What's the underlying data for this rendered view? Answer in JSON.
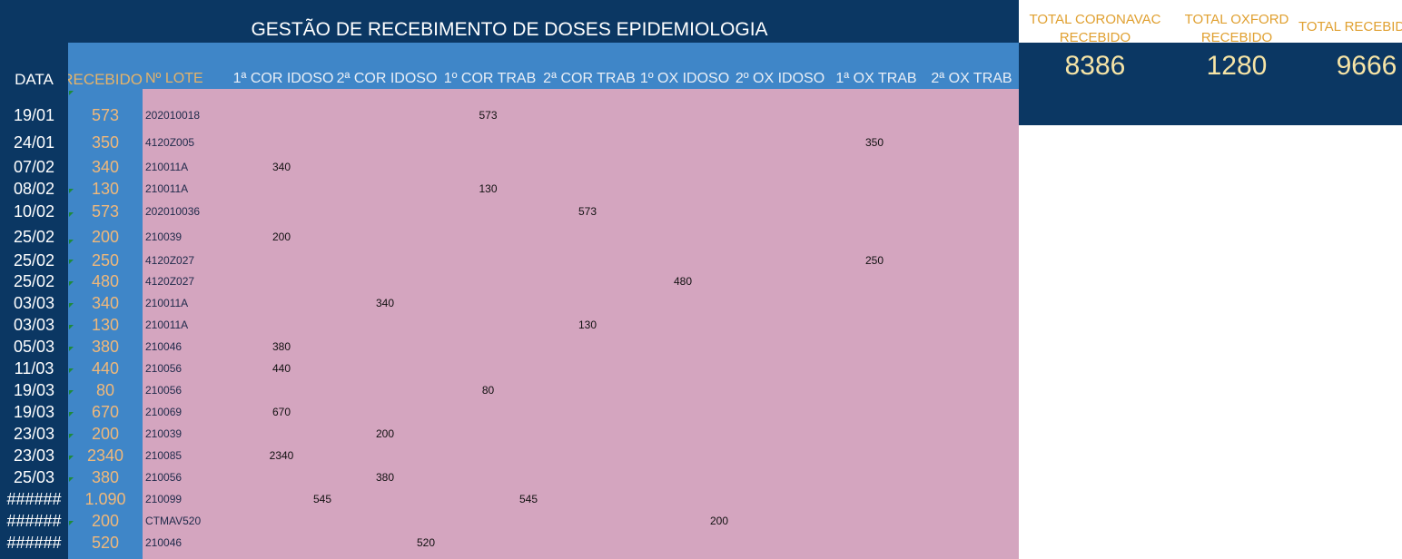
{
  "title": "GESTÃO DE RECEBIMENTO DE DOSES EPIDEMIOLOGIA",
  "headers": {
    "data": "DATA",
    "recebido": "RECEBIDO",
    "lote": "Nº LOTE",
    "cols": [
      "1ª COR IDOSO",
      "2ª COR IDOSO",
      "1º COR TRAB",
      "2ª COR TRAB",
      "1º OX IDOSO",
      "2º OX IDOSO",
      "1ª OX TRAB",
      "2ª OX TRAB"
    ]
  },
  "rows": [
    {
      "date": "19/01",
      "rec": "573",
      "lote": "202010018",
      "cells": [
        {
          "col": 2,
          "v": "573"
        }
      ]
    },
    {
      "date": "24/01",
      "rec": "350",
      "lote": "4120Z005",
      "cells": [
        {
          "col": 6,
          "v": "350"
        }
      ]
    },
    {
      "date": "07/02",
      "rec": "340",
      "lote": "210011A",
      "cells": [
        {
          "col": 0,
          "v": "340"
        }
      ]
    },
    {
      "date": "08/02",
      "rec": "130",
      "lote": "210011A",
      "cells": [
        {
          "col": 2,
          "v": "130"
        }
      ]
    },
    {
      "date": "10/02",
      "rec": "573",
      "lote": "202010036",
      "cells": [
        {
          "col": 3,
          "v": "573"
        }
      ]
    },
    {
      "date": "25/02",
      "rec": "200",
      "lote": "210039",
      "cells": [
        {
          "col": 0,
          "v": "200"
        }
      ]
    },
    {
      "date": "25/02",
      "rec": "250",
      "lote": "4120Z027",
      "cells": [
        {
          "col": 6,
          "v": "250"
        }
      ]
    },
    {
      "date": "25/02",
      "rec": "480",
      "lote": "4120Z027",
      "cells": [
        {
          "col": 4,
          "v": "480"
        }
      ]
    },
    {
      "date": "03/03",
      "rec": "340",
      "lote": "210011A",
      "cells": [
        {
          "col": 1,
          "v": "340"
        }
      ]
    },
    {
      "date": "03/03",
      "rec": "130",
      "lote": "210011A",
      "cells": [
        {
          "col": 3,
          "v": "130"
        }
      ]
    },
    {
      "date": "05/03",
      "rec": "380",
      "lote": "210046",
      "cells": [
        {
          "col": 0,
          "v": "380"
        }
      ]
    },
    {
      "date": "11/03",
      "rec": "440",
      "lote": "210056",
      "cells": [
        {
          "col": 0,
          "v": "440"
        }
      ]
    },
    {
      "date": "19/03",
      "rec": "80",
      "lote": "210056",
      "cells": [
        {
          "col": 2,
          "v": "80"
        }
      ]
    },
    {
      "date": "19/03",
      "rec": "670",
      "lote": "210069",
      "cells": [
        {
          "col": 0,
          "v": "670"
        }
      ]
    },
    {
      "date": "23/03",
      "rec": "200",
      "lote": "210039",
      "cells": [
        {
          "col": 1,
          "v": "200"
        }
      ]
    },
    {
      "date": "23/03",
      "rec": "2340",
      "lote": "210085",
      "cells": [
        {
          "col": 0,
          "v": "2340"
        }
      ]
    },
    {
      "date": "25/03",
      "rec": "380",
      "lote": "210056",
      "cells": [
        {
          "col": 1,
          "v": "380"
        }
      ]
    },
    {
      "date": "######",
      "rec": "1.090",
      "lote": "210099",
      "cells": [
        {
          "col": 0,
          "v": "545",
          "right": true
        },
        {
          "col": 2,
          "v": "545",
          "right": true
        }
      ]
    },
    {
      "date": "######",
      "rec": "200",
      "lote": "CTMAV520",
      "cells": [
        {
          "col": 4,
          "v": "200",
          "right": true
        }
      ]
    },
    {
      "date": "######",
      "rec": "520",
      "lote": "210046",
      "cells": [
        {
          "col": 1,
          "v": "520",
          "right": true
        }
      ]
    }
  ],
  "totals": [
    {
      "label1": "TOTAL CORONAVAC",
      "label2": "RECEBIDO",
      "value": "8386"
    },
    {
      "label1": "TOTAL OXFORD",
      "label2": "RECEBIDO",
      "value": "1280"
    },
    {
      "label1": "TOTAL RECEBIDO",
      "label2": "",
      "value": "9666"
    }
  ]
}
